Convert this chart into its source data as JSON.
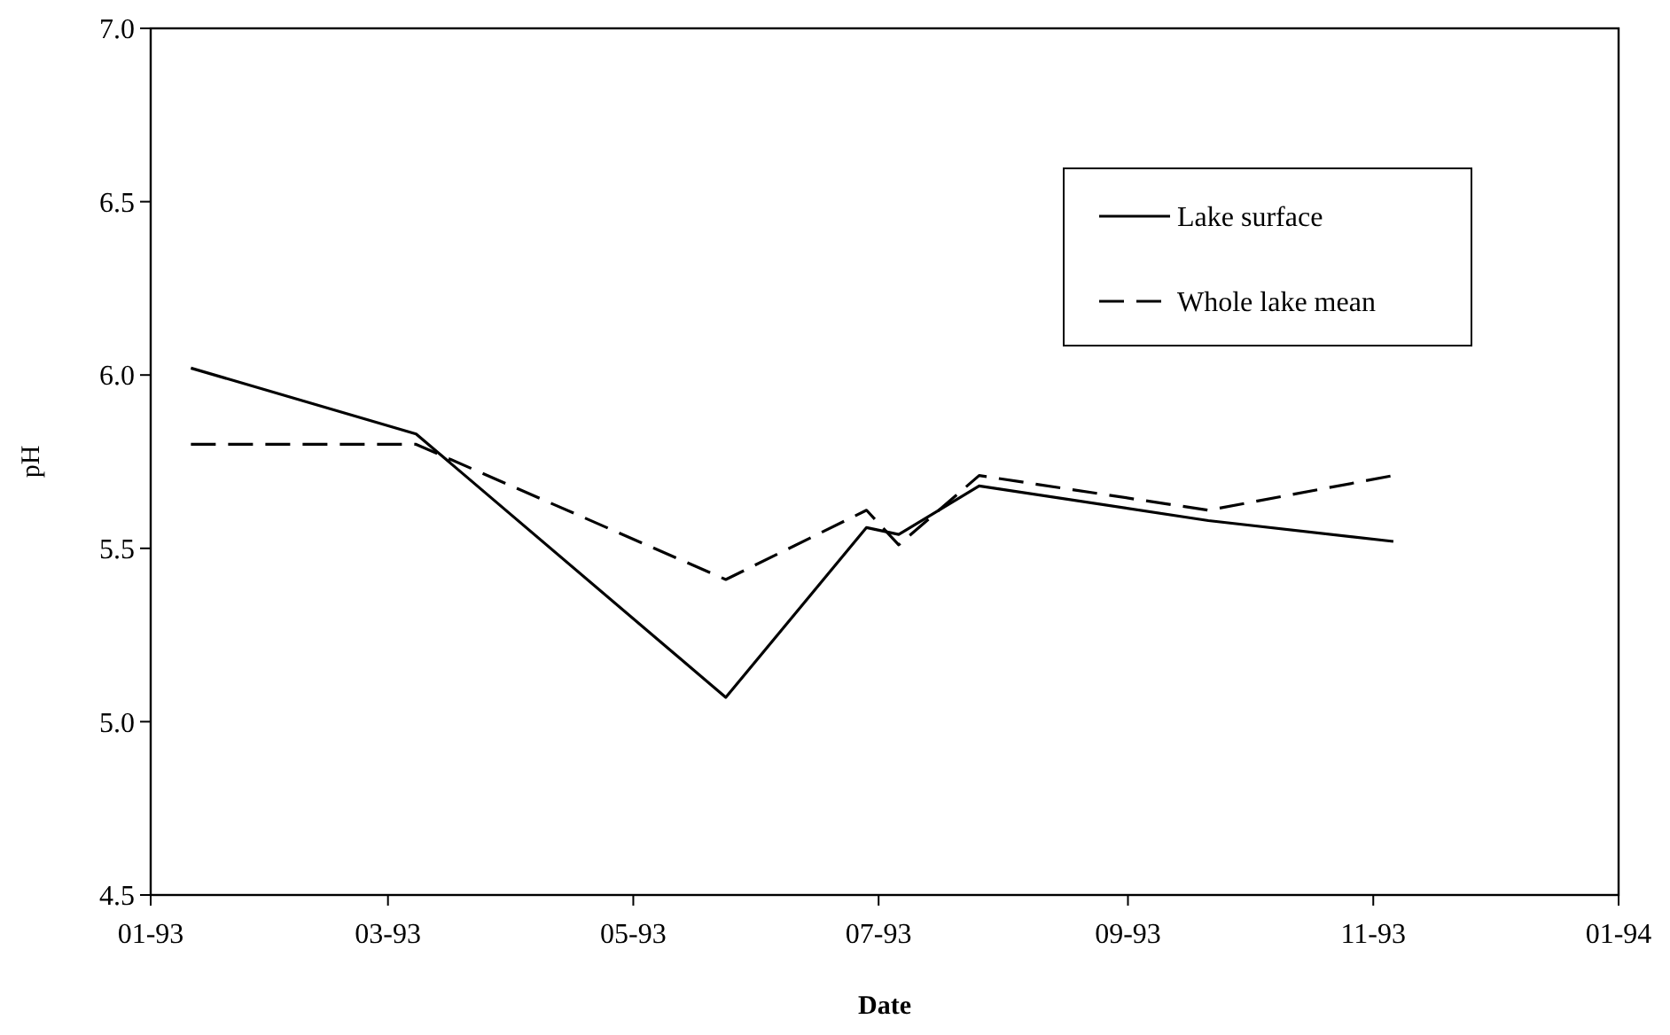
{
  "chart_data": {
    "type": "line",
    "xlabel": "Date",
    "ylabel": "pH",
    "x": [
      "1993-01-11",
      "1993-03-08",
      "1993-05-24",
      "1993-06-28",
      "1993-07-06",
      "1993-07-26",
      "1993-09-21",
      "1993-11-06"
    ],
    "series": [
      {
        "name": "Lake surface",
        "color": "#000000",
        "line_style": "solid",
        "values": [
          6.02,
          5.83,
          5.07,
          5.56,
          5.54,
          5.68,
          5.58,
          5.52
        ]
      },
      {
        "name": "Whole lake mean",
        "color": "#000000",
        "line_style": "dashed",
        "values": [
          5.8,
          5.8,
          5.41,
          5.61,
          5.51,
          5.71,
          5.61,
          5.71
        ]
      }
    ],
    "xlim": [
      "1993-01-01",
      "1994-01-01"
    ],
    "xticks": [
      {
        "value": "1993-01-01",
        "label": "01-93"
      },
      {
        "value": "1993-03-01",
        "label": "03-93"
      },
      {
        "value": "1993-05-01",
        "label": "05-93"
      },
      {
        "value": "1993-07-01",
        "label": "07-93"
      },
      {
        "value": "1993-09-01",
        "label": "09-93"
      },
      {
        "value": "1993-11-01",
        "label": "11-93"
      },
      {
        "value": "1994-01-01",
        "label": "01-94"
      }
    ],
    "ylim": [
      4.5,
      7
    ],
    "yticks": [
      {
        "value": 4.5,
        "label": "4.5"
      },
      {
        "value": 5,
        "label": "5.0"
      },
      {
        "value": 5.5,
        "label": "5.5"
      },
      {
        "value": 6,
        "label": "6.0"
      },
      {
        "value": 6.5,
        "label": "6.5"
      },
      {
        "value": 7,
        "label": "7.0"
      }
    ],
    "grid": false,
    "legend": "top right",
    "marker": "none"
  }
}
